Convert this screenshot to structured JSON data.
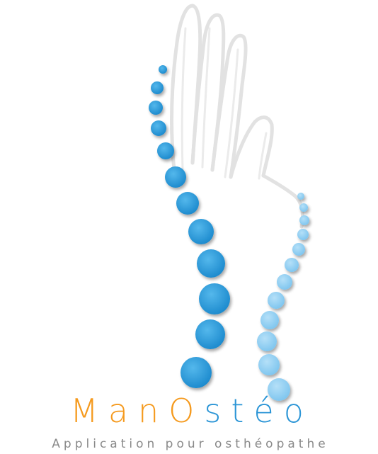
{
  "logo": {
    "name_part1": "Man",
    "name_part2": "O",
    "name_part3": "stéo",
    "tagline": "Application pour osthéopathe"
  },
  "colors": {
    "orange": "#f59a1e",
    "blue": "#2b95d6",
    "light_blue": "#8fcdf2",
    "tagline_grey": "#8a8a8a",
    "hand_outline": "#d9d9d9"
  },
  "icons": {
    "hand": "hand-outline-icon",
    "spine": "spine-dots-icon"
  }
}
